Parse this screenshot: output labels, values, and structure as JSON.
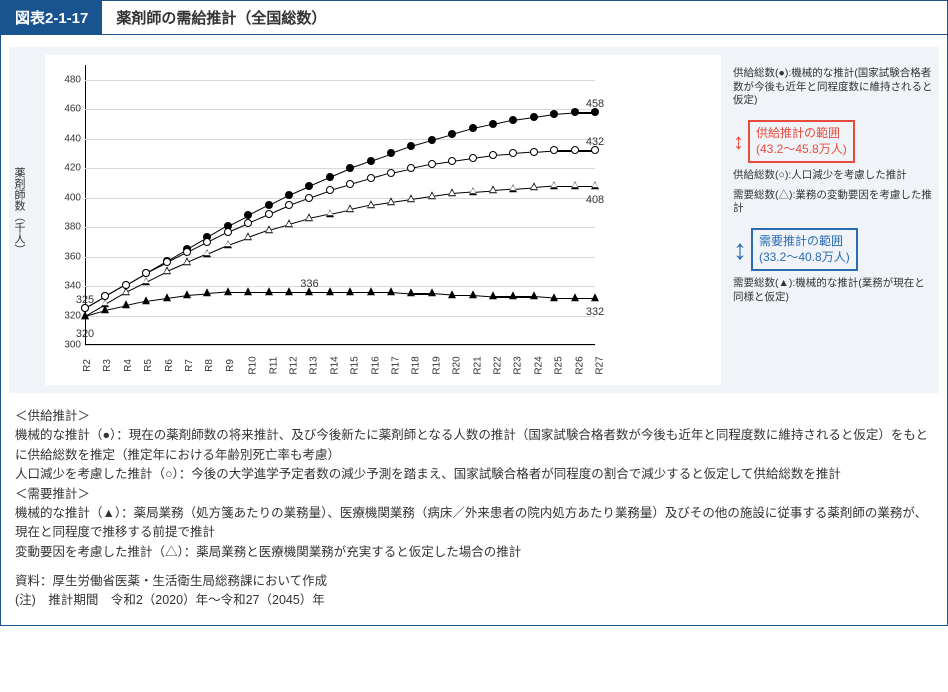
{
  "header": {
    "label": "図表2-1-17",
    "title": "薬剤師の需給推計（全国総数）"
  },
  "chart": {
    "type": "line",
    "yaxis_title": "薬剤師数（千人）",
    "ylim": [
      300,
      490
    ],
    "ytick_step": 20,
    "yticks": [
      300,
      320,
      340,
      360,
      380,
      400,
      420,
      440,
      460,
      480
    ],
    "categories": [
      "R2",
      "R3",
      "R4",
      "R5",
      "R6",
      "R7",
      "R8",
      "R9",
      "R10",
      "R11",
      "R12",
      "R13",
      "R14",
      "R15",
      "R16",
      "R17",
      "R18",
      "R19",
      "R20",
      "R21",
      "R22",
      "R23",
      "R24",
      "R25",
      "R26",
      "R27"
    ],
    "background_color": "#ffffff",
    "plot_bg": "#f0f3f8",
    "grid_color": "#d8d8d8",
    "label_fontsize": 10,
    "marker_size": 8,
    "line_width": 1.4,
    "series": [
      {
        "name": "supply_mechanical",
        "marker": "filled_circle",
        "color": "#000000",
        "legend": "供給総数(●):機械的な推計(国家試験合格者数が今後も近年と同程度数に維持されると仮定)",
        "values": [
          325,
          333,
          341,
          349,
          357,
          365,
          373,
          381,
          388,
          395,
          402,
          408,
          414,
          420,
          425,
          430,
          435,
          439,
          443,
          447,
          450,
          453,
          455,
          457,
          458,
          458
        ]
      },
      {
        "name": "supply_pop_decline",
        "marker": "open_circle",
        "color": "#000000",
        "legend": "供給総数(○):人口減少を考慮した推計",
        "values": [
          325,
          333,
          341,
          349,
          356,
          363,
          370,
          377,
          383,
          389,
          395,
          400,
          405,
          409,
          413,
          417,
          420,
          423,
          425,
          427,
          429,
          430,
          431,
          432,
          432,
          432
        ]
      },
      {
        "name": "demand_variable",
        "marker": "open_triangle",
        "color": "#000000",
        "legend": "需要総数(△):業務の変動要因を考慮した推計",
        "values": [
          320,
          328,
          336,
          343,
          350,
          356,
          362,
          368,
          373,
          378,
          382,
          386,
          389,
          392,
          395,
          397,
          399,
          401,
          403,
          404,
          405,
          406,
          407,
          408,
          408,
          408
        ]
      },
      {
        "name": "demand_mechanical",
        "marker": "filled_triangle",
        "color": "#000000",
        "legend": "需要総数(▲):機械的な推計(業務が現在と同様と仮定)",
        "values": [
          320,
          324,
          327,
          330,
          332,
          334,
          335,
          336,
          336,
          336,
          336,
          336,
          336,
          336,
          336,
          336,
          335,
          335,
          334,
          334,
          333,
          333,
          333,
          332,
          332,
          332
        ]
      }
    ],
    "value_labels": [
      {
        "text": "325",
        "x_index": 0,
        "y": 325,
        "dy": -14
      },
      {
        "text": "320",
        "x_index": 0,
        "y": 320,
        "dy": 12
      },
      {
        "text": "336",
        "x_index": 11,
        "y": 336,
        "dy": -14
      },
      {
        "text": "458",
        "x_index": 25,
        "y": 458,
        "dy": -14
      },
      {
        "text": "432",
        "x_index": 25,
        "y": 432,
        "dy": -14
      },
      {
        "text": "408",
        "x_index": 25,
        "y": 408,
        "dy": 8
      },
      {
        "text": "332",
        "x_index": 25,
        "y": 332,
        "dy": 8
      }
    ],
    "range_boxes": {
      "supply": {
        "text1": "供給推計の範囲",
        "text2": "(43.2～45.8万人)",
        "color": "#e84c3d"
      },
      "demand": {
        "text1": "需要推計の範囲",
        "text2": "(33.2～40.8万人)",
        "color": "#2b6cb0"
      }
    }
  },
  "notes": {
    "lines": [
      "＜供給推計＞",
      "機械的な推計（●）：現在の薬剤師数の将来推計、及び今後新たに薬剤師となる人数の推計（国家試験合格者数が今後も近年と同程度数に維持されると仮定）をもとに供給総数を推定（推定年における年齢別死亡率も考慮）",
      "人口減少を考慮した推計（○）：今後の大学進学予定者数の減少予測を踏まえ、国家試験合格者が同程度の割合で減少すると仮定して供給総数を推計",
      "＜需要推計＞",
      "機械的な推計（▲）：薬局業務（処方箋あたりの業務量）、医療機関業務（病床／外来患者の院内処方あたり業務量）及びその他の施設に従事する薬剤師の業務が、現在と同程度で推移する前提で推計",
      "変動要因を考慮した推計（△）：薬局業務と医療機関業務が充実すると仮定した場合の推計"
    ],
    "source": "資料：厚生労働省医薬・生活衛生局総務課において作成",
    "period": "(注)　推計期間　令和2（2020）年～令和27（2045）年"
  }
}
